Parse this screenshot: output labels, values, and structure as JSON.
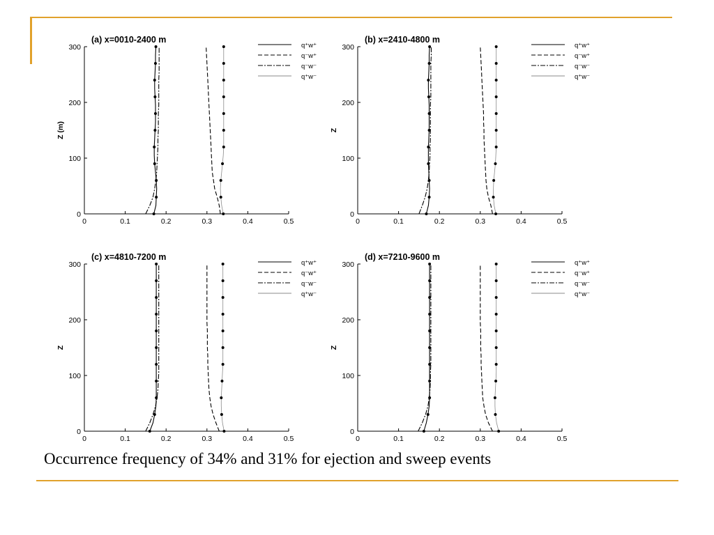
{
  "theme": {
    "accent": "#e1a12b",
    "line": "#000000",
    "light_line": "#8a8a8a"
  },
  "caption": "Occurrence frequency of 34% and 31% for ejection and sweep events",
  "legend_entries": [
    "q⁺w⁺",
    "q⁻w⁺",
    "q⁻w⁻",
    "q⁺w⁻"
  ],
  "chart_data": [
    {
      "type": "line",
      "title": "(a) x=0010-2400 m",
      "xlabel": "",
      "ylabel": "Z (m)",
      "xlim": [
        0,
        0.5
      ],
      "ylim": [
        0,
        300
      ],
      "xticks": [
        "0",
        "0.1",
        "0.2",
        "0.3",
        "0.4",
        "0.5"
      ],
      "yticks": [
        "0",
        "100",
        "200",
        "300"
      ],
      "y": [
        0,
        15,
        30,
        45,
        60,
        75,
        90,
        105,
        120,
        135,
        150,
        165,
        180,
        195,
        210,
        225,
        240,
        255,
        270,
        285,
        300
      ],
      "series": [
        {
          "name": "q⁺w⁺",
          "style": "solid",
          "marker": true,
          "values": [
            0.17,
            0.175,
            0.176,
            0.177,
            0.176,
            0.174,
            0.172,
            0.171,
            0.171,
            0.172,
            0.173,
            0.174,
            0.174,
            0.174,
            0.173,
            0.172,
            0.172,
            0.173,
            0.174,
            0.174,
            0.175
          ]
        },
        {
          "name": "q⁻w⁺",
          "style": "dashed",
          "marker": false,
          "values": [
            0.333,
            0.33,
            0.325,
            0.319,
            0.316,
            0.313,
            0.312,
            0.311,
            0.31,
            0.309,
            0.308,
            0.307,
            0.306,
            0.305,
            0.304,
            0.303,
            0.302,
            0.301,
            0.3,
            0.299,
            0.298
          ]
        },
        {
          "name": "q⁻w⁻",
          "style": "dashdot",
          "marker": false,
          "values": [
            0.15,
            0.16,
            0.168,
            0.172,
            0.175,
            0.177,
            0.178,
            0.179,
            0.18,
            0.18,
            0.181,
            0.181,
            0.181,
            0.182,
            0.182,
            0.182,
            0.182,
            0.183,
            0.183,
            0.183,
            0.183
          ]
        },
        {
          "name": "q⁺w⁻",
          "style": "thin",
          "marker": true,
          "values": [
            0.34,
            0.336,
            0.334,
            0.333,
            0.334,
            0.336,
            0.338,
            0.34,
            0.341,
            0.341,
            0.341,
            0.341,
            0.341,
            0.341,
            0.341,
            0.341,
            0.341,
            0.341,
            0.341,
            0.341,
            0.341
          ]
        }
      ]
    },
    {
      "type": "line",
      "title": "(b) x=2410-4800 m",
      "xlabel": "",
      "ylabel": "Z",
      "xlim": [
        0,
        0.5
      ],
      "ylim": [
        0,
        300
      ],
      "xticks": [
        "0",
        "0.1",
        "0.2",
        "0.3",
        "0.4",
        "0.5"
      ],
      "yticks": [
        "0",
        "100",
        "200",
        "300"
      ],
      "y": [
        0,
        15,
        30,
        45,
        60,
        75,
        90,
        105,
        120,
        135,
        150,
        165,
        180,
        195,
        210,
        225,
        240,
        255,
        270,
        285,
        300
      ],
      "series": [
        {
          "name": "q⁺w⁺",
          "style": "solid",
          "marker": true,
          "values": [
            0.168,
            0.173,
            0.175,
            0.176,
            0.175,
            0.174,
            0.173,
            0.173,
            0.173,
            0.174,
            0.175,
            0.175,
            0.175,
            0.175,
            0.174,
            0.173,
            0.173,
            0.174,
            0.175,
            0.175,
            0.176
          ]
        },
        {
          "name": "q⁻w⁺",
          "style": "dashed",
          "marker": false,
          "values": [
            0.33,
            0.326,
            0.32,
            0.316,
            0.314,
            0.313,
            0.312,
            0.311,
            0.31,
            0.309,
            0.309,
            0.308,
            0.308,
            0.307,
            0.306,
            0.305,
            0.304,
            0.303,
            0.302,
            0.301,
            0.3
          ]
        },
        {
          "name": "q⁻w⁻",
          "style": "dashdot",
          "marker": false,
          "values": [
            0.15,
            0.158,
            0.165,
            0.17,
            0.173,
            0.175,
            0.176,
            0.177,
            0.177,
            0.178,
            0.178,
            0.178,
            0.178,
            0.178,
            0.179,
            0.179,
            0.179,
            0.179,
            0.179,
            0.18,
            0.18
          ]
        },
        {
          "name": "q⁺w⁻",
          "style": "thin",
          "marker": true,
          "values": [
            0.338,
            0.334,
            0.332,
            0.332,
            0.333,
            0.335,
            0.337,
            0.338,
            0.339,
            0.339,
            0.339,
            0.339,
            0.339,
            0.339,
            0.339,
            0.339,
            0.339,
            0.339,
            0.339,
            0.339,
            0.339
          ]
        }
      ]
    },
    {
      "type": "line",
      "title": "(c) x=4810-7200 m",
      "xlabel": "",
      "ylabel": "Z",
      "xlim": [
        0,
        0.5
      ],
      "ylim": [
        0,
        300
      ],
      "xticks": [
        "0",
        "0.1",
        "0.2",
        "0.3",
        "0.4",
        "0.5"
      ],
      "yticks": [
        "0",
        "100",
        "200",
        "300"
      ],
      "y": [
        0,
        15,
        30,
        45,
        60,
        75,
        90,
        105,
        120,
        135,
        150,
        165,
        180,
        195,
        210,
        225,
        240,
        255,
        270,
        285,
        300
      ],
      "series": [
        {
          "name": "q⁺w⁺",
          "style": "solid",
          "marker": true,
          "values": [
            0.16,
            0.168,
            0.172,
            0.175,
            0.176,
            0.176,
            0.176,
            0.176,
            0.176,
            0.176,
            0.176,
            0.176,
            0.176,
            0.176,
            0.176,
            0.176,
            0.176,
            0.176,
            0.176,
            0.176,
            0.176
          ]
        },
        {
          "name": "q⁻w⁺",
          "style": "dashed",
          "marker": false,
          "values": [
            0.33,
            0.322,
            0.315,
            0.31,
            0.307,
            0.305,
            0.304,
            0.303,
            0.302,
            0.302,
            0.301,
            0.301,
            0.301,
            0.3,
            0.3,
            0.3,
            0.3,
            0.3,
            0.3,
            0.3,
            0.3
          ]
        },
        {
          "name": "q⁻w⁻",
          "style": "dashdot",
          "marker": false,
          "values": [
            0.15,
            0.16,
            0.168,
            0.174,
            0.178,
            0.18,
            0.181,
            0.182,
            0.182,
            0.182,
            0.182,
            0.182,
            0.182,
            0.182,
            0.182,
            0.182,
            0.182,
            0.182,
            0.182,
            0.182,
            0.182
          ]
        },
        {
          "name": "q⁺w⁻",
          "style": "thin",
          "marker": true,
          "values": [
            0.342,
            0.338,
            0.336,
            0.335,
            0.335,
            0.336,
            0.337,
            0.338,
            0.339,
            0.339,
            0.339,
            0.339,
            0.339,
            0.339,
            0.339,
            0.339,
            0.339,
            0.339,
            0.339,
            0.339,
            0.339
          ]
        }
      ]
    },
    {
      "type": "line",
      "title": "(d) x=7210-9600 m",
      "xlabel": "",
      "ylabel": "Z",
      "xlim": [
        0,
        0.5
      ],
      "ylim": [
        0,
        300
      ],
      "xticks": [
        "0",
        "0.1",
        "0.2",
        "0.3",
        "0.4",
        "0.5"
      ],
      "yticks": [
        "0",
        "100",
        "200",
        "300"
      ],
      "y": [
        0,
        15,
        30,
        45,
        60,
        75,
        90,
        105,
        120,
        135,
        150,
        165,
        180,
        195,
        210,
        225,
        240,
        255,
        270,
        285,
        300
      ],
      "series": [
        {
          "name": "q⁺w⁺",
          "style": "solid",
          "marker": true,
          "values": [
            0.162,
            0.168,
            0.172,
            0.175,
            0.176,
            0.176,
            0.176,
            0.176,
            0.176,
            0.176,
            0.176,
            0.176,
            0.176,
            0.176,
            0.176,
            0.176,
            0.176,
            0.176,
            0.176,
            0.176,
            0.176
          ]
        },
        {
          "name": "q⁻w⁺",
          "style": "dashed",
          "marker": false,
          "values": [
            0.33,
            0.32,
            0.313,
            0.309,
            0.306,
            0.305,
            0.304,
            0.303,
            0.302,
            0.302,
            0.301,
            0.301,
            0.301,
            0.3,
            0.3,
            0.3,
            0.3,
            0.3,
            0.3,
            0.3,
            0.3
          ]
        },
        {
          "name": "q⁻w⁻",
          "style": "dashdot",
          "marker": false,
          "values": [
            0.148,
            0.158,
            0.166,
            0.172,
            0.175,
            0.177,
            0.178,
            0.178,
            0.179,
            0.179,
            0.179,
            0.179,
            0.179,
            0.179,
            0.179,
            0.179,
            0.179,
            0.179,
            0.179,
            0.179,
            0.179
          ]
        },
        {
          "name": "q⁺w⁻",
          "style": "thin",
          "marker": true,
          "values": [
            0.345,
            0.34,
            0.337,
            0.336,
            0.336,
            0.337,
            0.338,
            0.339,
            0.339,
            0.339,
            0.339,
            0.339,
            0.339,
            0.339,
            0.339,
            0.339,
            0.339,
            0.339,
            0.339,
            0.339,
            0.339
          ]
        }
      ]
    }
  ]
}
